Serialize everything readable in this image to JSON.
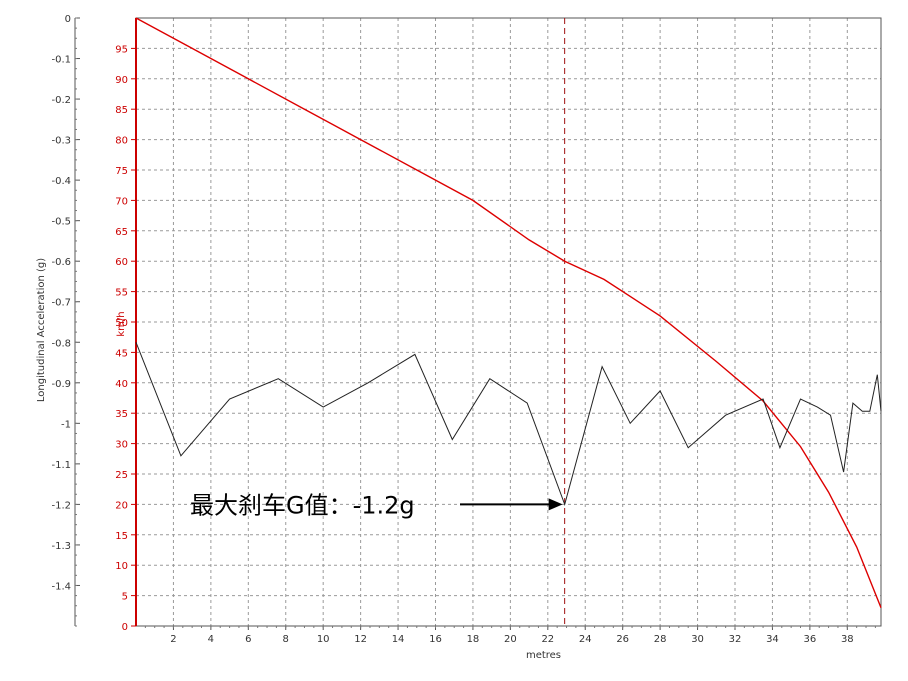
{
  "chart_data": {
    "type": "line",
    "xlabel": "metres",
    "ylabel_left": "Longitudinal Acceleration (g)",
    "ylabel_right": "km/h",
    "xlim": [
      0,
      39.8
    ],
    "x_ticks": [
      2,
      4,
      6,
      8,
      10,
      12,
      14,
      16,
      18,
      20,
      22,
      24,
      26,
      28,
      30,
      32,
      34,
      36,
      38
    ],
    "ylim_left": [
      -1.5,
      0
    ],
    "y_ticks_left": [
      "0",
      "-0.1",
      "-0.2",
      "-0.3",
      "-0.4",
      "-0.5",
      "-0.6",
      "-0.7",
      "-0.8",
      "-0.9",
      "-1",
      "-1.1",
      "-1.2",
      "-1.3",
      "-1.4"
    ],
    "ylim_right": [
      0,
      100
    ],
    "y_ticks_right": [
      "0",
      "5",
      "10",
      "15",
      "20",
      "25",
      "30",
      "35",
      "40",
      "45",
      "50",
      "55",
      "60",
      "65",
      "70",
      "75",
      "80",
      "85",
      "90",
      "95"
    ],
    "grid": true,
    "series": [
      {
        "axis": "right",
        "color": "#dd0000",
        "x": [
          0,
          3,
          6,
          9,
          12,
          15,
          18,
          21,
          22.9,
          25,
          28,
          31,
          33.5,
          35.5,
          37,
          38.5,
          39.8
        ],
        "y": [
          100,
          95,
          90,
          85,
          80,
          75,
          70,
          63.5,
          60,
          57,
          51,
          43.5,
          37,
          29.5,
          22,
          13,
          3
        ]
      },
      {
        "axis": "left",
        "color": "#222222",
        "x": [
          0,
          2.4,
          5,
          7.6,
          10,
          12.4,
          14.9,
          16.9,
          18.9,
          20.9,
          22.9,
          24.9,
          26.4,
          28,
          29.5,
          31.5,
          33.5,
          34.4,
          35.5,
          36.4,
          37.1,
          37.8,
          38.3,
          38.8,
          39.2,
          39.6,
          39.8
        ],
        "y": [
          -0.8,
          -1.08,
          -0.94,
          -0.89,
          -0.96,
          -0.9,
          -0.83,
          -1.04,
          -0.89,
          -0.95,
          -1.2,
          -0.86,
          -1.0,
          -0.92,
          -1.06,
          -0.98,
          -0.94,
          -1.06,
          -0.94,
          -0.96,
          -0.98,
          -1.12,
          -0.95,
          -0.97,
          -0.97,
          -0.88,
          -0.97
        ]
      }
    ],
    "marker_x": 22.9,
    "annotation": {
      "text": "最大刹车G值：-1.2g",
      "x": 22.9,
      "y": -1.2
    }
  }
}
